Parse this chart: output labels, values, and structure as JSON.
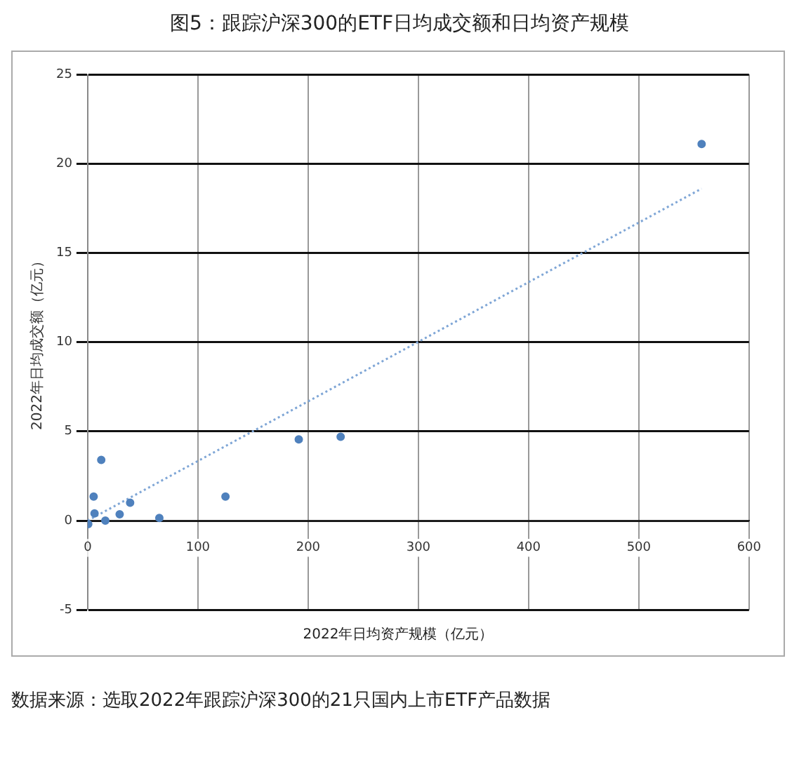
{
  "chart_data": {
    "type": "scatter",
    "title": "图5：跟踪沪深300的ETF日均成交额和日均资产规模",
    "xlabel": "2022年日均资产规模（亿元）",
    "ylabel": "2022年日均成交额（亿元）",
    "series": [
      {
        "type": "scatter",
        "color": "#4f81bd",
        "x": [
          0.5,
          5.4,
          6.2,
          12.3,
          16,
          29,
          38.5,
          65,
          125,
          191.5,
          229.5,
          557
        ],
        "values": [
          -0.2,
          1.35,
          0.4,
          3.4,
          0,
          0.35,
          1.0,
          0.15,
          1.35,
          4.55,
          4.7,
          21.1
        ]
      },
      {
        "type": "line",
        "color": "#7fa6d6",
        "line_style": "dotted",
        "marker": "none",
        "x": [
          0,
          557
        ],
        "values": [
          0,
          18.6
        ]
      }
    ],
    "xlim": [
      0,
      600
    ],
    "xticks": [
      0,
      100,
      200,
      300,
      400,
      500,
      600
    ],
    "ylim": [
      -5,
      25
    ],
    "yticks": [
      -5,
      0,
      5,
      10,
      15,
      20,
      25
    ],
    "grid": true,
    "legend": false,
    "marker": "circle",
    "annotations": [
      "数据来源：选取2022年跟踪沪深300的21只国内上市ETF产品数据"
    ]
  }
}
